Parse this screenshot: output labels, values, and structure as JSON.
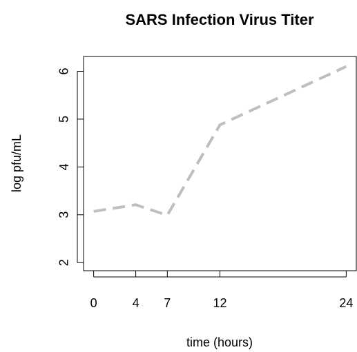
{
  "chart_data": {
    "type": "line",
    "title": "SARS Infection Virus Titer",
    "x_label": "time (hours)",
    "y_label": "log pfu/mL",
    "x": [
      0,
      4,
      7,
      12,
      24
    ],
    "series": [
      {
        "color": "#bebebe",
        "values": [
          3.07,
          3.21,
          2.99,
          4.88,
          6.1
        ]
      }
    ],
    "xlim": [
      -0.96,
      24.96
    ],
    "xticks": [
      0,
      4,
      7,
      12,
      24
    ],
    "ylim": [
      1.83,
      6.31
    ],
    "yticks": [
      2,
      3,
      4,
      5,
      6
    ],
    "grid": false
  }
}
